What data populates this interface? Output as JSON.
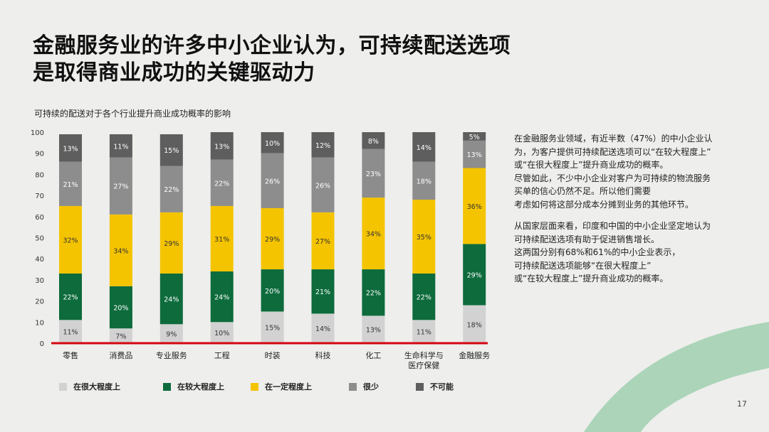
{
  "title": {
    "line1": "金融服务业的许多中小企业认为，可持续配送选项",
    "line2": "是取得商业成功的关键驱动力"
  },
  "page_number": "17",
  "side_text": {
    "p1": [
      "在金融服务业领域，有近半数（47%）的中小企业认",
      "为，为客户提供可持续配送选项可以“在较大程度上”",
      "或“在很大程度上”提升商业成功的概率。",
      "尽管如此，不少中小企业对客户为可持续的物流服务",
      "买单的信心仍然不足。所以他们需要",
      "考虑如何将这部分成本分摊到业务的其他环节。"
    ],
    "p2": [
      "从国家层面来看，印度和中国的中小企业坚定地认为",
      "可持续配送选项有助于促进销售增长。",
      "这两国分别有68%和61%的中小企业表示，",
      "可持续配送选项能够“在很大程度上”",
      "或“在较大程度上”提升商业成功的概率。"
    ]
  },
  "colors": {
    "very_large": "#d2d2d2",
    "large": "#0d6b3c",
    "some": "#f5c400",
    "little": "#8d8d8d",
    "none": "#5e5e5e",
    "baseline": "#d40511"
  },
  "chart_data": {
    "type": "bar",
    "stacked": true,
    "title": "可持续的配送对于各个行业提升商业成功概率的影响",
    "ylim": [
      0,
      100
    ],
    "yticks": [
      0,
      10,
      20,
      30,
      40,
      50,
      60,
      70,
      80,
      90,
      100
    ],
    "categories": [
      [
        "零售"
      ],
      [
        "消费品"
      ],
      [
        "专业服务"
      ],
      [
        "工程"
      ],
      [
        "时装"
      ],
      [
        "科技"
      ],
      [
        "化工"
      ],
      [
        "生命科学与",
        "医疗保健"
      ],
      [
        "金融服务"
      ]
    ],
    "series": [
      {
        "name": "在很大程度上",
        "color_key": "very_large",
        "values": [
          11,
          7,
          9,
          10,
          15,
          14,
          13,
          11,
          18
        ]
      },
      {
        "name": "在较大程度上",
        "color_key": "large",
        "values": [
          22,
          20,
          24,
          24,
          20,
          21,
          22,
          22,
          29
        ]
      },
      {
        "name": "在一定程度上",
        "color_key": "some",
        "values": [
          32,
          34,
          29,
          31,
          29,
          27,
          34,
          35,
          36
        ]
      },
      {
        "name": "很少",
        "color_key": "little",
        "values": [
          21,
          27,
          22,
          22,
          26,
          26,
          23,
          18,
          13
        ]
      },
      {
        "name": "不可能",
        "color_key": "none",
        "values": [
          13,
          11,
          15,
          13,
          10,
          12,
          8,
          14,
          5
        ]
      }
    ]
  }
}
